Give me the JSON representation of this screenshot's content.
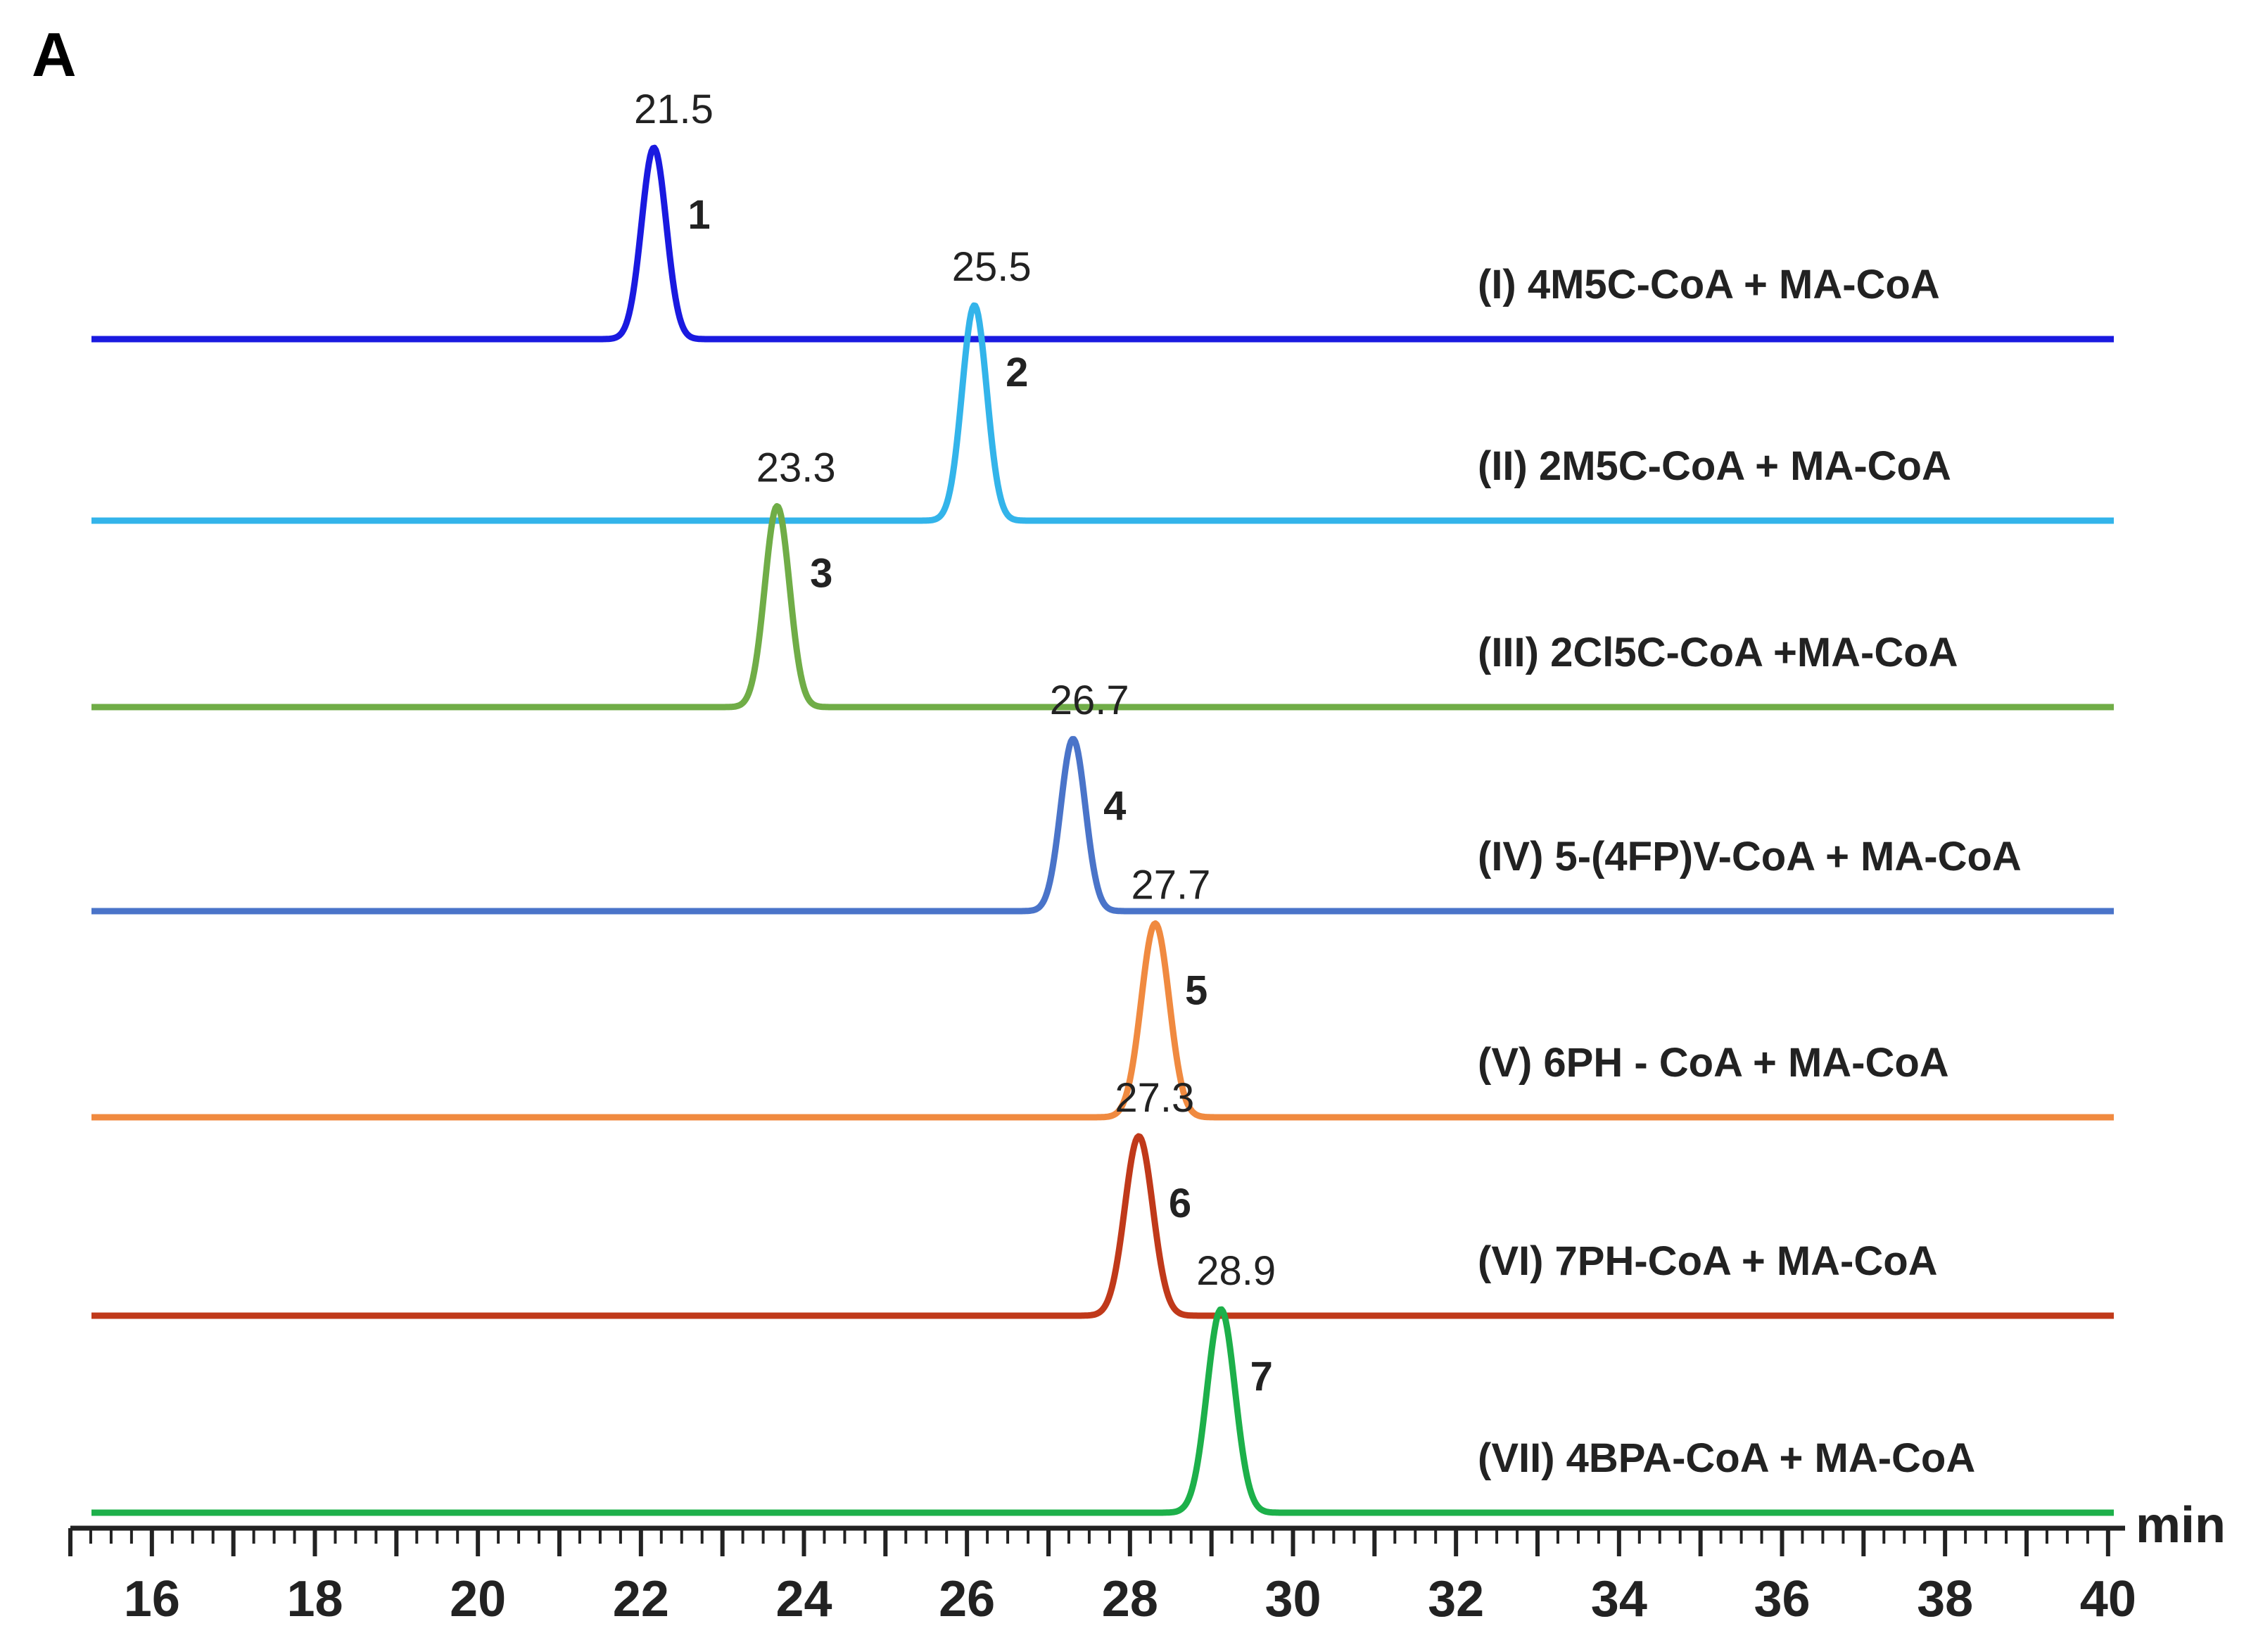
{
  "panel_label": "A",
  "chart_data": {
    "type": "line",
    "title": "",
    "xlabel": "min",
    "ylabel": "",
    "xlim": [
      15,
      40
    ],
    "x_ticks": [
      "16",
      "18",
      "20",
      "22",
      "24",
      "26",
      "28",
      "30",
      "32",
      "34",
      "36",
      "38",
      "40"
    ],
    "series": [
      {
        "name": "(I) 4M5C-CoA  + MA-CoA",
        "color": "#1a1ae0",
        "peak_rt_label": "21.5",
        "peak_x": 22.1,
        "peak_width": 0.15,
        "peak_height": 0.8,
        "peak_number": "1"
      },
      {
        "name": "(II) 2M5C-CoA + MA-CoA",
        "color": "#33b4ea",
        "peak_rt_label": "25.5",
        "peak_x": 26.0,
        "peak_width": 0.15,
        "peak_height": 0.9,
        "peak_number": "2"
      },
      {
        "name": "(III) 2Cl5C-CoA +MA-CoA",
        "color": "#70ad47",
        "peak_rt_label": "23.3",
        "peak_x": 23.6,
        "peak_width": 0.15,
        "peak_height": 0.84,
        "peak_number": "3"
      },
      {
        "name": "(IV) 5-(4FP)V-CoA + MA-CoA",
        "color": "#4a74c9",
        "peak_rt_label": "26.7",
        "peak_x": 27.2,
        "peak_width": 0.15,
        "peak_height": 0.72,
        "peak_number": "4"
      },
      {
        "name": "(V) 6PH - CoA + MA-CoA",
        "color": "#f08a40",
        "peak_rt_label": "27.7",
        "peak_x": 28.2,
        "peak_width": 0.17,
        "peak_height": 0.81,
        "peak_number": "5"
      },
      {
        "name": "(VI) 7PH-CoA + MA-CoA",
        "color": "#c0391a",
        "peak_rt_label": "27.3",
        "peak_x": 28.0,
        "peak_width": 0.17,
        "peak_height": 0.75,
        "peak_number": "6"
      },
      {
        "name": "(VII) 4BPA-CoA + MA-CoA",
        "color": "#1db04a",
        "peak_rt_label": "28.9",
        "peak_x": 29.0,
        "peak_width": 0.17,
        "peak_height": 0.85,
        "peak_number": "7"
      }
    ]
  }
}
